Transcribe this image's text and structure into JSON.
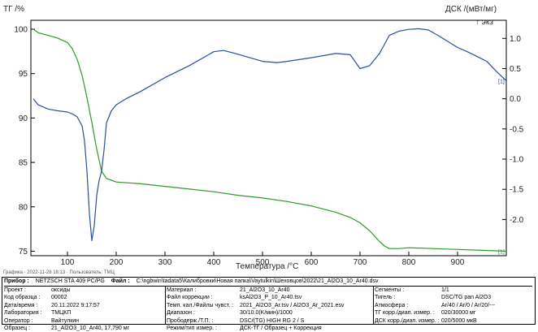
{
  "chart_data": {
    "type": "line",
    "xlabel": "Температура /°C",
    "ylabel_left": "ТГ /%",
    "ylabel_right": "ДСК /(мВт/мг)",
    "right_note": "↑ экз",
    "xlim": [
      25,
      1000
    ],
    "ylim_left": [
      74.5,
      101
    ],
    "ylim_right": [
      -2.6,
      1.3
    ],
    "x_ticks": [
      "100",
      "200",
      "300",
      "400",
      "500",
      "600",
      "700",
      "800",
      "900"
    ],
    "y_ticks_left": [
      "100",
      "95",
      "90",
      "85",
      "80",
      "75"
    ],
    "y_ticks_right": [
      "1.0",
      "0.5",
      "0.0",
      "-0.5",
      "-1.0",
      "-1.5",
      "-2.0"
    ],
    "grid": false,
    "series": [
      {
        "axis": "left",
        "color": "#2e9a2e",
        "end_label": "[1]",
        "x": [
          30,
          40,
          60,
          80,
          100,
          110,
          120,
          130,
          140,
          150,
          160,
          170,
          180,
          190,
          200,
          250,
          300,
          350,
          400,
          450,
          500,
          550,
          600,
          650,
          680,
          700,
          720,
          740,
          750,
          760,
          780,
          800,
          850,
          900,
          950,
          1000
        ],
        "y": [
          100,
          99.6,
          99.3,
          99.0,
          98.5,
          97.8,
          96.6,
          94.8,
          92.3,
          89.5,
          86.5,
          84.0,
          83.2,
          83.0,
          82.8,
          82.6,
          82.3,
          82.0,
          81.7,
          81.3,
          81.0,
          80.6,
          80.1,
          79.4,
          78.8,
          78.2,
          77.3,
          76.1,
          75.6,
          75.3,
          75.3,
          75.4,
          75.3,
          75.2,
          75.1,
          75.0
        ]
      },
      {
        "axis": "right",
        "color": "#2b4f9c",
        "end_label": "[1]",
        "x": [
          30,
          40,
          60,
          80,
          100,
          110,
          120,
          130,
          135,
          140,
          145,
          150,
          155,
          160,
          165,
          170,
          175,
          180,
          190,
          200,
          220,
          250,
          300,
          350,
          400,
          420,
          440,
          500,
          530,
          550,
          600,
          650,
          680,
          700,
          720,
          740,
          760,
          780,
          800,
          820,
          840,
          860,
          880,
          900,
          920,
          940,
          960,
          980,
          1000
        ],
        "y": [
          0.0,
          -0.1,
          -0.17,
          -0.2,
          -0.22,
          -0.25,
          -0.3,
          -0.45,
          -0.7,
          -1.2,
          -1.9,
          -2.35,
          -2.1,
          -1.6,
          -1.35,
          -1.2,
          -0.85,
          -0.4,
          -0.2,
          -0.1,
          0.0,
          0.12,
          0.35,
          0.55,
          0.78,
          0.8,
          0.76,
          0.62,
          0.6,
          0.62,
          0.68,
          0.75,
          0.73,
          0.5,
          0.55,
          0.75,
          1.05,
          1.12,
          1.15,
          1.16,
          1.14,
          1.05,
          0.95,
          0.85,
          0.78,
          0.7,
          0.62,
          0.45,
          0.3
        ]
      }
    ]
  },
  "status_line": "Графика · 2022-11-28 18:13 · Пользователь: ТМЦ",
  "metadata": {
    "top": [
      {
        "label": "Прибор :",
        "value": "NETZSCH STA 409 PC/PG"
      },
      {
        "label": "Файл :",
        "value": "C:\\ngbwin\\tadata5\\Калибровки\\Новая папка\\Vaytulkin\\Шеховцов\\2022\\21_Al2O3_10_Ar40.dsv"
      }
    ],
    "col1": [
      {
        "label": "Проект :",
        "value": "оксиды"
      },
      {
        "label": "Код образца :",
        "value": "00002"
      },
      {
        "label": "Дата/время :",
        "value": "20.11.2022 9:17:57"
      },
      {
        "label": "Лаборатория :",
        "value": "ТМЦКП"
      },
      {
        "label": "Оператор :",
        "value": "Вайтулкин"
      },
      {
        "label": "Образец :",
        "value": "21_Al2O3_10_Ar40, 17,790 мг"
      }
    ],
    "col2": [
      {
        "label": "Материал :",
        "value": "21_Al2O3_10_Ar40"
      },
      {
        "label": "Файл коррекции :",
        "value": "ksAl2O3_P_10_Ar40.tsv"
      },
      {
        "label": "Темп. кал./Файлы чувст. :",
        "value": "2021_Al2O3_Ar.tsv / Al2O3_Ar_2021.esv"
      },
      {
        "label": "Диапазон :",
        "value": "30/10.0(K/мин)/1000"
      },
      {
        "label": "Прободерж./Т.П. :",
        "value": "DSC/(TG) HIGH RG 2 / S"
      },
      {
        "label": "Режим/тип измер. :",
        "value": "ДСК-ТГ / Образец + Коррекция"
      }
    ],
    "col3": [
      {
        "label": "Сегменты :",
        "value": "1/1"
      },
      {
        "label": "Тигель :",
        "value": "DSC/TG pan Al2O3"
      },
      {
        "label": "Атмосфера :",
        "value": "Ar/40 / Ar/0 / Ar/20/---"
      },
      {
        "label": "ТГ корр./диап. измер. :",
        "value": "020/30000 мг"
      },
      {
        "label": "ДСК корр./диап. измер. :",
        "value": "020/5000 мкВ"
      }
    ]
  }
}
